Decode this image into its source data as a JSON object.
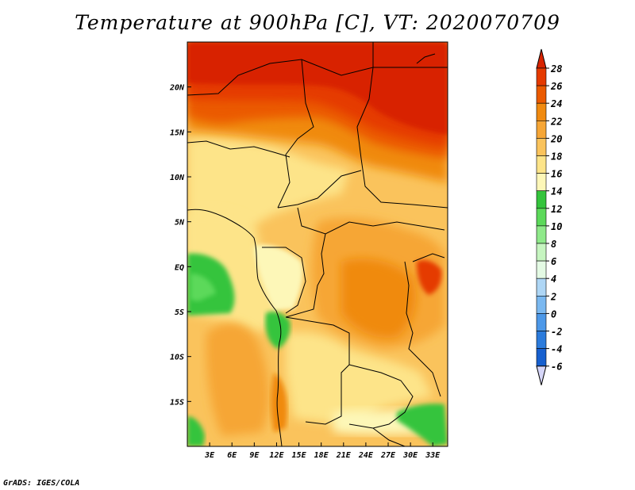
{
  "title": "Temperature at 900hPa [C], VT: 2020070709",
  "credit": "GrADS: IGES/COLA",
  "map": {
    "lon_range": [
      0,
      35
    ],
    "lat_range": [
      -20,
      25
    ],
    "lat_labels": [
      "20N",
      "15N",
      "10N",
      "5N",
      "EQ",
      "5S",
      "10S",
      "15S"
    ],
    "lat_values": [
      20,
      15,
      10,
      5,
      0,
      -5,
      -10,
      -15
    ],
    "lon_labels": [
      "3E",
      "6E",
      "9E",
      "12E",
      "15E",
      "18E",
      "21E",
      "24E",
      "27E",
      "30E",
      "33E"
    ],
    "lon_values": [
      3,
      6,
      9,
      12,
      15,
      18,
      21,
      24,
      27,
      30,
      33
    ]
  },
  "legend": {
    "labels": [
      "28",
      "26",
      "24",
      "22",
      "20",
      "18",
      "16",
      "14",
      "12",
      "10",
      "8",
      "6",
      "4",
      "2",
      "0",
      "-2",
      "-4",
      "-6"
    ],
    "colors": [
      "#d82400",
      "#e53a00",
      "#eb5a00",
      "#f08a10",
      "#f6a636",
      "#fac35c",
      "#fde489",
      "#fdf7b8",
      "#34c43c",
      "#5cd95a",
      "#8fe98a",
      "#c6f5c0",
      "#e4fae4",
      "#aed6f5",
      "#7ab8f0",
      "#4c98e8",
      "#2b7bdc",
      "#1760cf",
      "#0b43b4",
      "#03209a",
      "#00105f",
      "#d6d6f8"
    ]
  }
}
